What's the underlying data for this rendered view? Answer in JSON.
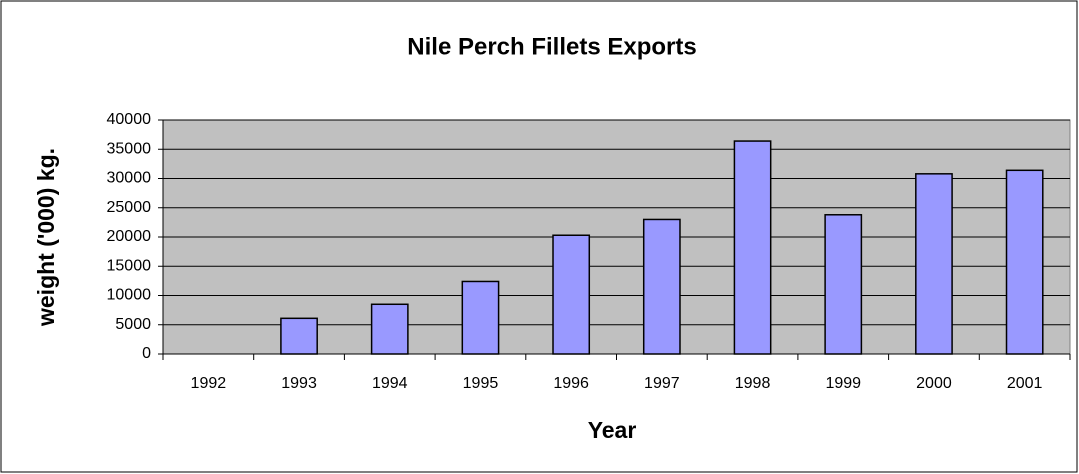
{
  "chart_data": {
    "type": "bar",
    "title": "Nile Perch Fillets Exports",
    "x_label": "Year",
    "y_label": "weight ('000) kg.",
    "categories": [
      "1992",
      "1993",
      "1994",
      "1995",
      "1996",
      "1997",
      "1998",
      "1999",
      "2000",
      "2001"
    ],
    "values": [
      0,
      6100,
      8500,
      12400,
      20300,
      23000,
      36400,
      23800,
      30800,
      31400
    ],
    "color": "#9999ff",
    "plot_color": "#c0c0c0",
    "ylim": [
      0,
      40000
    ],
    "yticks": [
      0,
      5000,
      10000,
      15000,
      20000,
      25000,
      30000,
      35000,
      40000
    ],
    "grid": true
  }
}
